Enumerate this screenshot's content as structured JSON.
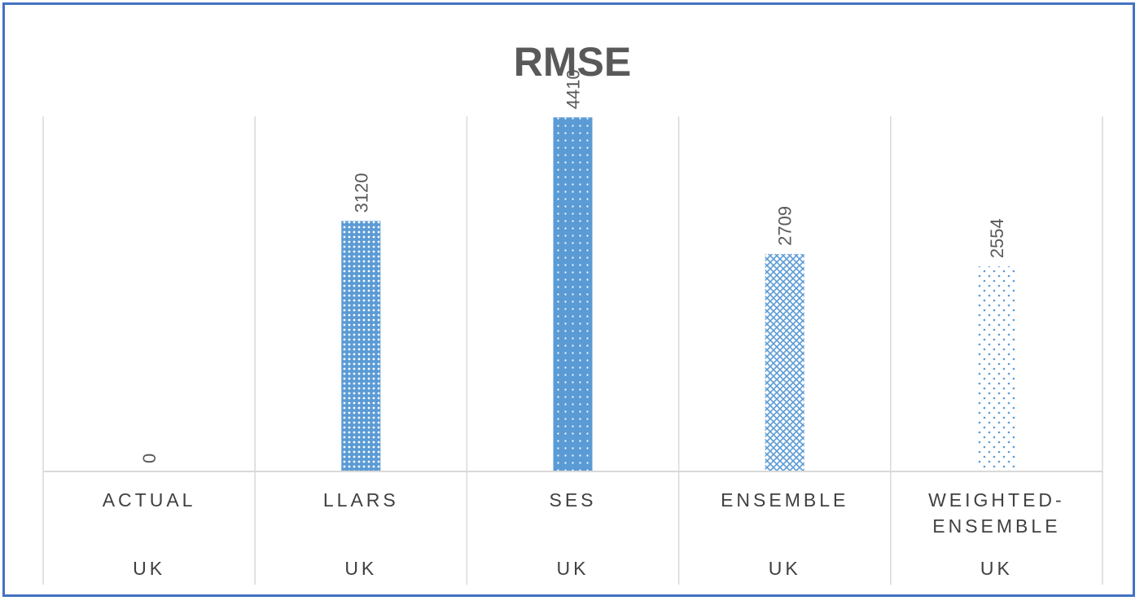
{
  "chart_data": {
    "type": "bar",
    "title": "RMSE",
    "categories": [
      "ACTUAL",
      "LLARS",
      "SES",
      "ENSEMBLE",
      "WEIGHTED-ENSEMBLE"
    ],
    "groups": [
      "UK",
      "UK",
      "UK",
      "UK",
      "UK"
    ],
    "values": [
      0,
      3120,
      4410,
      2709,
      2554
    ],
    "data_labels": [
      "0",
      "3120",
      "4410",
      "2709",
      "2554"
    ],
    "patterns": [
      "none",
      "fine-grid",
      "dots-dense",
      "crosshatch",
      "dots-sparse"
    ],
    "ylim": [
      0,
      5000
    ],
    "xlabel": "",
    "ylabel": "",
    "grid": false,
    "colors": {
      "bar": "#5b9bd5",
      "border": "#4472c4",
      "gridline": "#d9d9d9",
      "text": "#595959"
    }
  }
}
